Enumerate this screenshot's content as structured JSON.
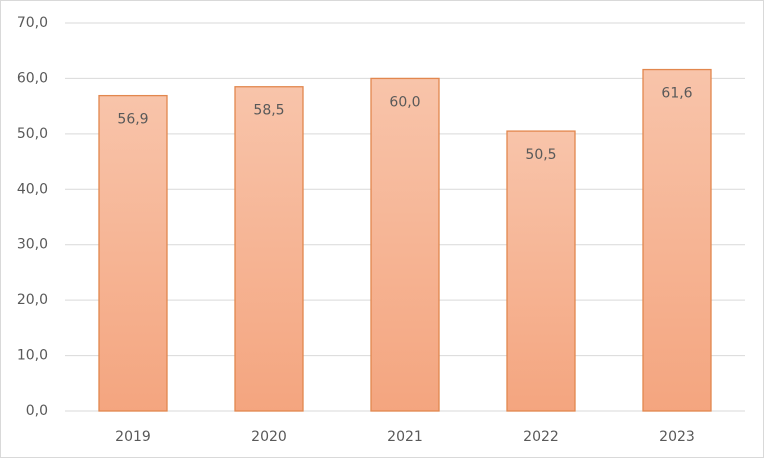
{
  "chart_data": {
    "type": "bar",
    "categories": [
      "2019",
      "2020",
      "2021",
      "2022",
      "2023"
    ],
    "values": [
      56.9,
      58.5,
      60.0,
      50.5,
      61.6
    ],
    "value_labels": [
      "56,9",
      "58,5",
      "60,0",
      "50,5",
      "61,6"
    ],
    "color": "#f4a57f",
    "ylim": [
      0,
      70
    ],
    "yticks": [
      {
        "value": 0,
        "label": "0,0"
      },
      {
        "value": 10,
        "label": "10,0"
      },
      {
        "value": 20,
        "label": "20,0"
      },
      {
        "value": 30,
        "label": "30,0"
      },
      {
        "value": 40,
        "label": "40,0"
      },
      {
        "value": 50,
        "label": "50,0"
      },
      {
        "value": 60,
        "label": "60,0"
      },
      {
        "value": 70,
        "label": "70,0"
      }
    ],
    "grid": true
  }
}
